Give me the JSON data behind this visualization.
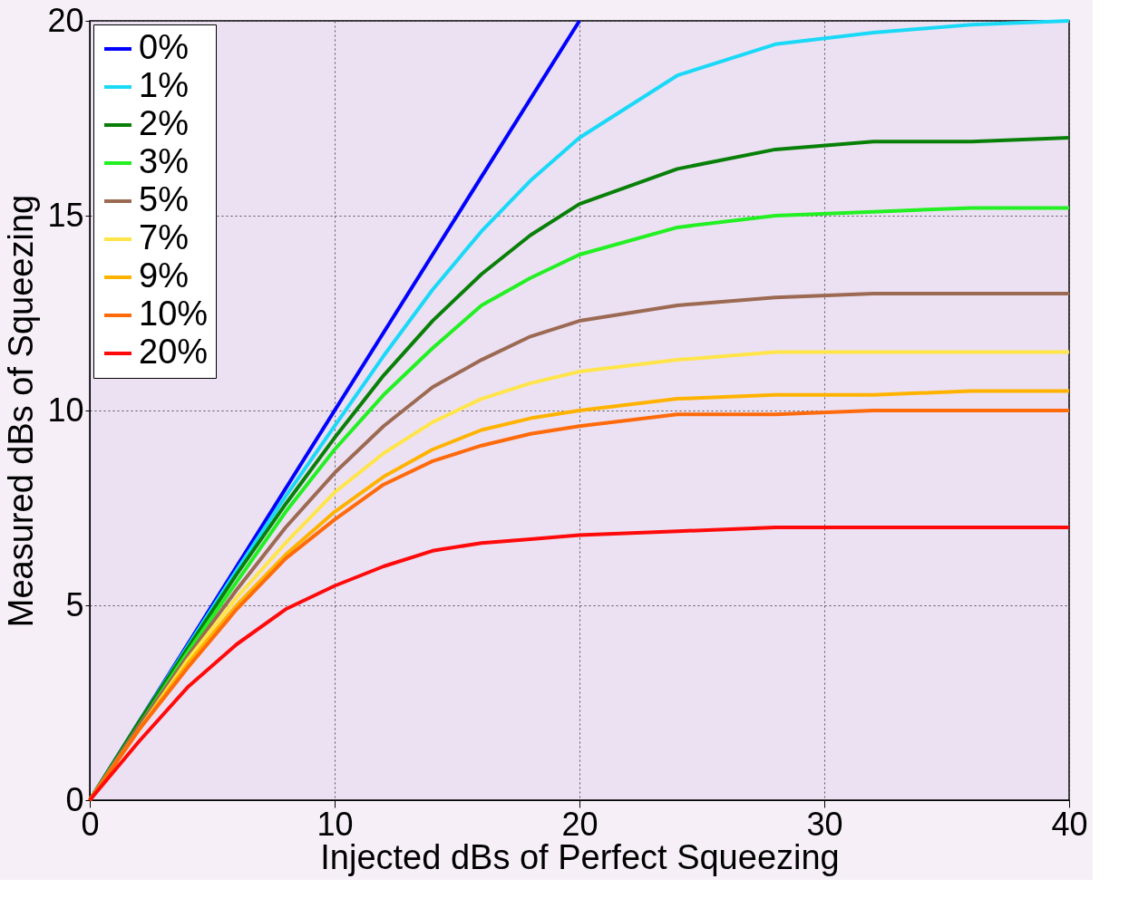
{
  "chart_data": {
    "type": "line",
    "xlabel": "Injected dBs of Perfect Squeezing",
    "ylabel": "Measured dBs of Squeezing",
    "xlim": [
      0,
      40
    ],
    "ylim": [
      0,
      20
    ],
    "xticks": [
      0,
      10,
      20,
      30,
      40
    ],
    "yticks": [
      0,
      5,
      10,
      15,
      20
    ],
    "grid": true,
    "legend": "top left",
    "line_style": "solid",
    "marker": "none",
    "x": [
      0,
      2,
      4,
      6,
      8,
      10,
      12,
      14,
      16,
      18,
      20,
      24,
      28,
      32,
      36,
      40
    ],
    "series": [
      {
        "name": "0%",
        "color": "#0000ff",
        "x": [
          0,
          20
        ],
        "values": [
          0,
          20
        ]
      },
      {
        "name": "1%",
        "color": "#1ad9f7",
        "x": [
          0,
          2,
          6,
          8,
          10,
          12,
          14,
          16,
          18,
          20,
          24,
          28,
          32,
          36,
          40
        ],
        "values": [
          0,
          2.0,
          5.9,
          7.8,
          9.6,
          11.4,
          13.1,
          14.6,
          15.9,
          17.0,
          18.6,
          19.4,
          19.7,
          19.9,
          20.0
        ]
      },
      {
        "name": "2%",
        "color": "#088008",
        "values": [
          0,
          2.0,
          3.9,
          5.8,
          7.6,
          9.3,
          10.9,
          12.3,
          13.5,
          14.5,
          15.3,
          16.2,
          16.7,
          16.9,
          16.9,
          17.0
        ]
      },
      {
        "name": "3%",
        "color": "#22f022",
        "values": [
          0,
          1.9,
          3.8,
          5.6,
          7.4,
          9.0,
          10.4,
          11.6,
          12.7,
          13.4,
          14.0,
          14.7,
          15.0,
          15.1,
          15.2,
          15.2
        ]
      },
      {
        "name": "5%",
        "color": "#9c6a52",
        "values": [
          0,
          1.9,
          3.7,
          5.4,
          7.0,
          8.4,
          9.6,
          10.6,
          11.3,
          11.9,
          12.3,
          12.7,
          12.9,
          13.0,
          13.0,
          13.0
        ]
      },
      {
        "name": "7%",
        "color": "#ffe54a",
        "values": [
          0,
          1.8,
          3.6,
          5.2,
          6.6,
          7.9,
          8.9,
          9.7,
          10.3,
          10.7,
          11.0,
          11.3,
          11.5,
          11.5,
          11.5,
          11.5
        ]
      },
      {
        "name": "9%",
        "color": "#ffb300",
        "values": [
          0,
          1.8,
          3.5,
          5.0,
          6.3,
          7.4,
          8.3,
          9.0,
          9.5,
          9.8,
          10.0,
          10.3,
          10.4,
          10.4,
          10.5,
          10.5
        ]
      },
      {
        "name": "10%",
        "color": "#ff6a0a",
        "values": [
          0,
          1.8,
          3.4,
          4.9,
          6.2,
          7.2,
          8.1,
          8.7,
          9.1,
          9.4,
          9.6,
          9.9,
          9.9,
          10.0,
          10.0,
          10.0
        ]
      },
      {
        "name": "20%",
        "color": "#ff0a0a",
        "values": [
          0,
          1.5,
          2.9,
          4.0,
          4.9,
          5.5,
          6.0,
          6.4,
          6.6,
          6.7,
          6.8,
          6.9,
          7.0,
          7.0,
          7.0,
          7.0
        ]
      }
    ]
  }
}
